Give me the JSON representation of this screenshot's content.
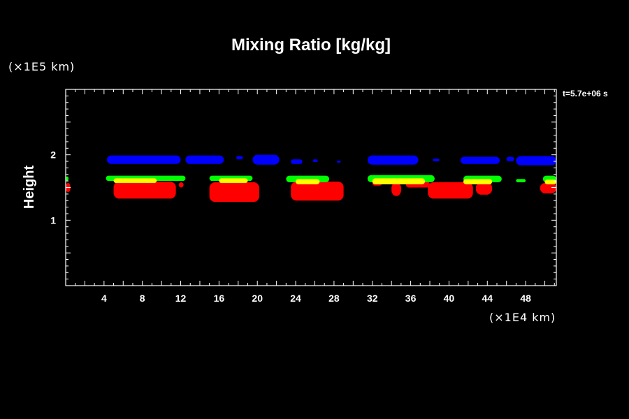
{
  "chart_data": {
    "type": "heatmap",
    "title": "Mixing Ratio [kg/kg]",
    "ylabel": "Height",
    "xlabel": "",
    "x_unit": "(×1E4 km)",
    "y_unit": "(×1E5 km)",
    "time_label": "t=5.7e+06 s",
    "xlim": [
      0,
      51.2
    ],
    "ylim": [
      0,
      3.0
    ],
    "x_ticks": [
      4,
      8,
      12,
      16,
      20,
      24,
      28,
      32,
      36,
      40,
      44,
      48
    ],
    "y_ticks": [
      1,
      2
    ],
    "grid": false,
    "colors": {
      "background": "#000000",
      "axis": "#ffffff",
      "blue": "#0000ff",
      "green": "#00ff00",
      "yellow": "#ffff00",
      "red": "#ff0000"
    },
    "blue_layer": [
      {
        "x": [
          4.3,
          12.0
        ],
        "y": [
          1.86,
          1.99
        ]
      },
      {
        "x": [
          12.5,
          16.5
        ],
        "y": [
          1.86,
          1.99
        ]
      },
      {
        "x": [
          17.8,
          18.5
        ],
        "y": [
          1.93,
          1.98
        ]
      },
      {
        "x": [
          19.5,
          22.3
        ],
        "y": [
          1.85,
          2.0
        ]
      },
      {
        "x": [
          23.5,
          24.7
        ],
        "y": [
          1.86,
          1.93
        ]
      },
      {
        "x": [
          25.8,
          26.3
        ],
        "y": [
          1.89,
          1.93
        ]
      },
      {
        "x": [
          28.3,
          28.7
        ],
        "y": [
          1.88,
          1.91
        ]
      },
      {
        "x": [
          31.5,
          36.8
        ],
        "y": [
          1.85,
          1.99
        ]
      },
      {
        "x": [
          38.3,
          39.0
        ],
        "y": [
          1.9,
          1.94
        ]
      },
      {
        "x": [
          41.2,
          45.3
        ],
        "y": [
          1.86,
          1.97
        ]
      },
      {
        "x": [
          46.0,
          46.8
        ],
        "y": [
          1.9,
          1.97
        ]
      },
      {
        "x": [
          47.0,
          51.2
        ],
        "y": [
          1.84,
          1.98
        ]
      }
    ],
    "green_layer": [
      {
        "x": [
          0.0,
          0.3
        ],
        "y": [
          1.6,
          1.67
        ]
      },
      {
        "x": [
          4.2,
          12.5
        ],
        "y": [
          1.6,
          1.68
        ]
      },
      {
        "x": [
          15.0,
          19.5
        ],
        "y": [
          1.6,
          1.68
        ]
      },
      {
        "x": [
          23.0,
          27.5
        ],
        "y": [
          1.58,
          1.68
        ]
      },
      {
        "x": [
          31.5,
          38.5
        ],
        "y": [
          1.58,
          1.69
        ]
      },
      {
        "x": [
          41.5,
          45.5
        ],
        "y": [
          1.58,
          1.68
        ]
      },
      {
        "x": [
          47.0,
          48.0
        ],
        "y": [
          1.58,
          1.63
        ]
      },
      {
        "x": [
          49.8,
          51.2
        ],
        "y": [
          1.58,
          1.68
        ]
      }
    ],
    "yellow_layer": [
      {
        "x": [
          5.0,
          9.5
        ],
        "y": [
          1.57,
          1.64
        ]
      },
      {
        "x": [
          16.0,
          19.0
        ],
        "y": [
          1.57,
          1.64
        ]
      },
      {
        "x": [
          24.0,
          26.5
        ],
        "y": [
          1.55,
          1.63
        ]
      },
      {
        "x": [
          32.0,
          37.5
        ],
        "y": [
          1.55,
          1.64
        ]
      },
      {
        "x": [
          41.5,
          44.5
        ],
        "y": [
          1.55,
          1.63
        ]
      },
      {
        "x": [
          50.0,
          51.2
        ],
        "y": [
          1.55,
          1.62
        ]
      }
    ],
    "red_layer": [
      {
        "x": [
          0.0,
          0.5
        ],
        "y": [
          1.43,
          1.57
        ]
      },
      {
        "x": [
          5.0,
          11.5
        ],
        "y": [
          1.33,
          1.59
        ]
      },
      {
        "x": [
          11.8,
          12.3
        ],
        "y": [
          1.5,
          1.58
        ]
      },
      {
        "x": [
          15.0,
          20.2
        ],
        "y": [
          1.28,
          1.58
        ]
      },
      {
        "x": [
          23.5,
          29.0
        ],
        "y": [
          1.3,
          1.59
        ]
      },
      {
        "x": [
          32.0,
          33.0
        ],
        "y": [
          1.53,
          1.6
        ]
      },
      {
        "x": [
          34.0,
          35.0
        ],
        "y": [
          1.37,
          1.58
        ]
      },
      {
        "x": [
          35.5,
          38.0
        ],
        "y": [
          1.5,
          1.59
        ]
      },
      {
        "x": [
          37.8,
          42.5
        ],
        "y": [
          1.33,
          1.58
        ]
      },
      {
        "x": [
          42.8,
          44.5
        ],
        "y": [
          1.39,
          1.58
        ]
      },
      {
        "x": [
          49.5,
          51.2
        ],
        "y": [
          1.41,
          1.57
        ]
      }
    ]
  }
}
